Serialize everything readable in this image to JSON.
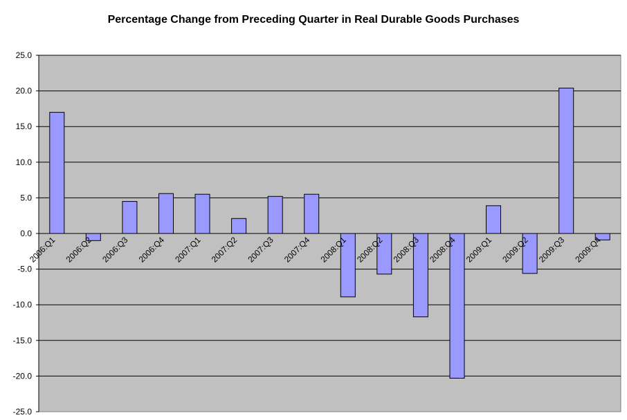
{
  "chart_data": {
    "type": "bar",
    "title": "Percentage Change from Preceding Quarter in Real Durable Goods Purchases",
    "xlabel": "",
    "ylabel": "",
    "categories": [
      "2006:Q1",
      "2006:Q2",
      "2006:Q3",
      "2006:Q4",
      "2007:Q1",
      "2007:Q2",
      "2007:Q3",
      "2007:Q4",
      "2008:Q1",
      "2008:Q2",
      "2008:Q3",
      "2008:Q4",
      "2009:Q1",
      "2009:Q2",
      "2009:Q3",
      "2009:Q4"
    ],
    "values": [
      17.0,
      -1.0,
      4.5,
      5.6,
      5.5,
      2.1,
      5.2,
      5.5,
      -8.9,
      -5.7,
      -11.7,
      -20.3,
      3.9,
      -5.6,
      20.4,
      -0.9
    ],
    "ylim": [
      -25,
      25
    ],
    "yticks": [
      "25.0",
      "20.0",
      "15.0",
      "10.0",
      "5.0",
      "0.0",
      "-5.0",
      "-10.0",
      "-15.0",
      "-20.0",
      "-25.0"
    ],
    "ytick_values": [
      25,
      20,
      15,
      10,
      5,
      0,
      -5,
      -10,
      -15,
      -20,
      -25
    ],
    "grid": true,
    "legend": "none",
    "colors": {
      "plot_bg": "#c0c0c0",
      "bar_fill": "#9999ff",
      "bar_stroke": "#000000",
      "grid": "#000000"
    }
  }
}
